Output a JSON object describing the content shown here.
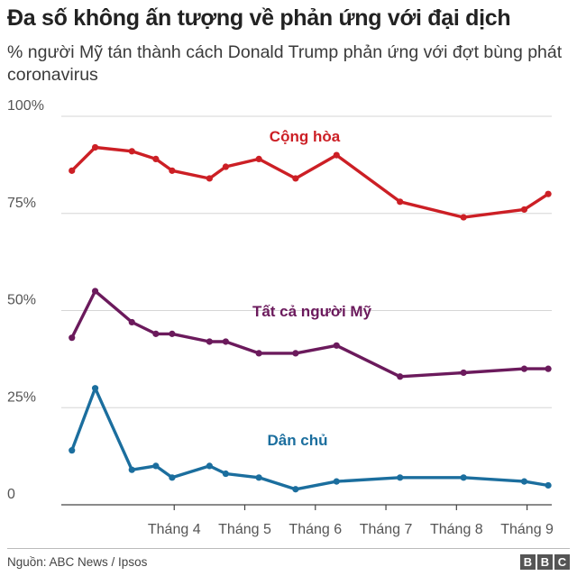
{
  "header": {
    "title": "Đa số không ấn tượng về phản ứng với đại dịch",
    "subtitle": "% người Mỹ tán thành cách Donald Trump phản ứng với đợt bùng phát coronavirus"
  },
  "footer": {
    "source": "Nguồn: ABC News / Ipsos",
    "logo_letters": [
      "B",
      "B",
      "C"
    ]
  },
  "chart_data": {
    "type": "line",
    "title": "",
    "xlabel": "",
    "ylabel": "",
    "ylim": [
      0,
      100
    ],
    "xlim": [
      2.4,
      9.35
    ],
    "y_ticks": [
      0,
      25,
      50,
      75,
      100
    ],
    "y_tick_labels": [
      "0",
      "25%",
      "50%",
      "75%",
      "100%"
    ],
    "x_ticks": [
      {
        "label": "Tháng 4",
        "value": 4
      },
      {
        "label": "Tháng 5",
        "value": 5
      },
      {
        "label": "Tháng 6",
        "value": 6
      },
      {
        "label": "Tháng 7",
        "value": 7
      },
      {
        "label": "Tháng 8",
        "value": 8
      },
      {
        "label": "Tháng 9",
        "value": 9
      }
    ],
    "grid": "horizontal",
    "series": [
      {
        "name": "Cộng hòa",
        "color": "#cc1f25",
        "x": [
          2.55,
          2.88,
          3.4,
          3.74,
          3.97,
          4.5,
          4.73,
          5.2,
          5.72,
          6.3,
          7.2,
          8.1,
          8.96,
          9.3
        ],
        "y": [
          86,
          92,
          91,
          89,
          86,
          84,
          87,
          89,
          84,
          90,
          78,
          74,
          76,
          80
        ]
      },
      {
        "name": "Tất cả người Mỹ",
        "color": "#6b1a5c",
        "x": [
          2.55,
          2.88,
          3.4,
          3.74,
          3.97,
          4.5,
          4.73,
          5.2,
          5.72,
          6.3,
          7.2,
          8.1,
          8.96,
          9.3
        ],
        "y": [
          43,
          55,
          47,
          44,
          44,
          42,
          42,
          39,
          39,
          41,
          33,
          34,
          35,
          35
        ]
      },
      {
        "name": "Dân chủ",
        "color": "#1b6e9e",
        "x": [
          2.55,
          2.88,
          3.4,
          3.74,
          3.97,
          4.5,
          4.73,
          5.2,
          5.72,
          6.3,
          7.2,
          8.1,
          8.96,
          9.3
        ],
        "y": [
          14,
          30,
          9,
          10,
          7,
          10,
          8,
          7,
          4,
          6,
          7,
          7,
          6,
          5
        ]
      }
    ]
  }
}
